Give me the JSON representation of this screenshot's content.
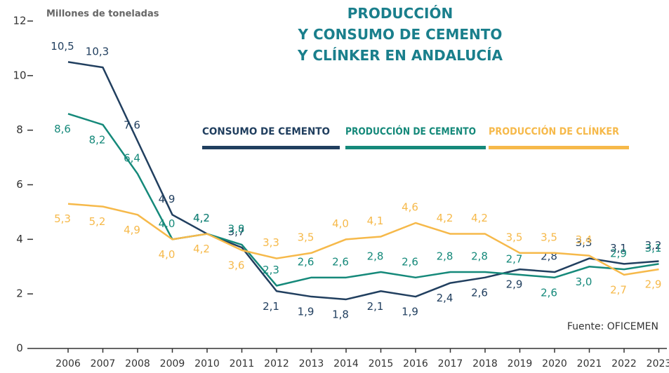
{
  "chart_data": {
    "type": "line",
    "title": "PRODUCCIÓN\nY CONSUMO DE CEMENTO\nY CLÍNKER EN ANDALUCÍA",
    "y_label": "Millones de toneladas",
    "source": "Fuente: OFICEMEN",
    "categories": [
      "2006",
      "2007",
      "2008",
      "2009",
      "2010",
      "2011",
      "2012",
      "2013",
      "2014",
      "2015",
      "2016",
      "2017",
      "2018",
      "2019",
      "2020",
      "2021",
      "2022",
      "2023"
    ],
    "series": [
      {
        "name": "CONSUMO DE CEMENTO",
        "color": "#213f5f",
        "values": [
          10.5,
          10.3,
          7.6,
          4.9,
          4.2,
          3.7,
          2.1,
          1.9,
          1.8,
          2.1,
          1.9,
          2.4,
          2.6,
          2.9,
          2.8,
          3.3,
          3.1,
          3.2
        ],
        "value_labels": [
          "10,5",
          "10,3",
          "7,6",
          "4,9",
          "4,2",
          "3,7",
          "2,1",
          "1,9",
          "1,8",
          "2,1",
          "1,9",
          "2,4",
          "2,6",
          "2,9",
          "2,8",
          "3,3",
          "3,1",
          "3,2"
        ]
      },
      {
        "name": "PRODUCCIÓN DE CEMENTO",
        "color": "#15897a",
        "values": [
          8.6,
          8.2,
          6.4,
          4.0,
          4.2,
          3.8,
          2.3,
          2.6,
          2.6,
          2.8,
          2.6,
          2.8,
          2.8,
          2.7,
          2.6,
          3.0,
          2.9,
          3.1
        ],
        "value_labels": [
          "8,6",
          "8,2",
          "6,4",
          "4,0",
          "4,2",
          "3,8",
          "2,3",
          "2,6",
          "2,6",
          "2,8",
          "2,6",
          "2,8",
          "2,8",
          "2,7",
          "2,6",
          "3,0",
          "2,9",
          "3,1"
        ]
      },
      {
        "name": "PRODUCCIÓN DE CLÍNKER",
        "color": "#f6b94a",
        "values": [
          5.3,
          5.2,
          4.9,
          4.0,
          4.2,
          3.6,
          3.3,
          3.5,
          4.0,
          4.1,
          4.6,
          4.2,
          4.2,
          3.5,
          3.5,
          3.4,
          2.7,
          2.9
        ],
        "value_labels": [
          "5,3",
          "5,2",
          "4,9",
          "4,0",
          "4,2",
          "3,6",
          "3,3",
          "3,5",
          "4,0",
          "4,1",
          "4,6",
          "4,2",
          "4,2",
          "3,5",
          "3,5",
          "3,4",
          "2,7",
          "2,9"
        ]
      }
    ],
    "ylim": [
      0,
      12
    ],
    "yticks": [
      0,
      2,
      4,
      6,
      8,
      10,
      12
    ],
    "grid": false
  }
}
